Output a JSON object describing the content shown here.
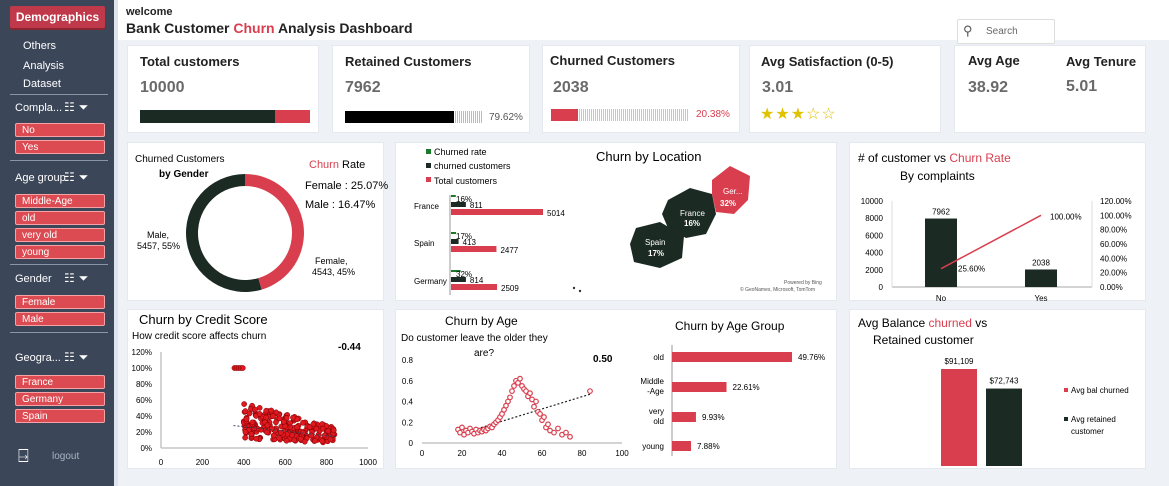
{
  "sidebar": {
    "active": "Demographics",
    "items": [
      "Others",
      "Analysis",
      "Dataset"
    ],
    "slicers": [
      {
        "title": "Compla...",
        "options": [
          "No",
          "Yes"
        ]
      },
      {
        "title": "Age group",
        "options": [
          "Middle-Age",
          "old",
          "very old",
          "young"
        ]
      },
      {
        "title": "Gender",
        "options": [
          "Female",
          "Male"
        ]
      },
      {
        "title": "Geogra...",
        "options": [
          "France",
          "Germany",
          "Spain"
        ]
      }
    ],
    "logout": "logout"
  },
  "header": {
    "welcome": "welcome",
    "title_pre": "Bank Customer ",
    "title_red": "Churn",
    "title_post": " Analysis Dashboard",
    "search_placeholder": "Search"
  },
  "kpis": {
    "total": {
      "title": "Total customers",
      "value": "10000",
      "bar_dark_fraction": 0.7962
    },
    "retained": {
      "title": "Retained Customers",
      "value": "7962",
      "pct": "79.62%",
      "fraction": 0.7962
    },
    "churned": {
      "title": "Churned Customers",
      "value": "2038",
      "pct": "20.38%",
      "fraction": 0.2038
    },
    "satisfaction": {
      "title": "Avg Satisfaction (0-5)",
      "value": "3.01",
      "stars_filled": 3,
      "stars_total": 5
    },
    "age": {
      "title": "Avg Age",
      "value": "38.92"
    },
    "tenure": {
      "title": "Avg Tenure",
      "value": "5.01"
    }
  },
  "colors": {
    "red": "#d93e4e",
    "dark": "#1c2a24",
    "sidebar": "#3b4658"
  },
  "chart_data": [
    {
      "id": "gender_donut",
      "type": "pie",
      "title_line1": "Churned Customers",
      "title_line2": "by Gender",
      "rate_red": "Churn",
      "rate_rest": " Rate",
      "rate_lines": [
        "Female : 25.07%",
        "Male : 16.47%"
      ],
      "slices": [
        {
          "label": "Male",
          "value": 5457,
          "pct": "55%"
        },
        {
          "label": "Female",
          "value": 4543,
          "pct": "45%"
        }
      ]
    },
    {
      "id": "location_bars",
      "type": "bar",
      "title": "Churn by Location",
      "legend": [
        "Churned rate",
        "churned customers",
        "Total customers"
      ],
      "categories": [
        "France",
        "Spain",
        "Germany"
      ],
      "series": [
        {
          "name": "Churned rate",
          "values": [
            16,
            17,
            32
          ],
          "labels": [
            "16%",
            "17%",
            "32%"
          ]
        },
        {
          "name": "churned customers",
          "values": [
            811,
            413,
            814
          ]
        },
        {
          "name": "Total customers",
          "values": [
            5014,
            2477,
            2509
          ]
        }
      ],
      "map_labels": [
        {
          "name": "France",
          "pct": "16%"
        },
        {
          "name": "Spain",
          "pct": "17%"
        },
        {
          "name": "Ger...",
          "pct": "32%"
        }
      ],
      "map_credit1": "Powered by Bing",
      "map_credit2": "© GeoNames, Microsoft, TomTom"
    },
    {
      "id": "complaints",
      "type": "bar",
      "title_pre": "# of customer vs ",
      "title_red": "Churn Rate",
      "subtitle": "By complaints",
      "categories": [
        "No",
        "Yes"
      ],
      "series": [
        {
          "name": "customers",
          "values": [
            7962,
            2038
          ]
        },
        {
          "name": "churn rate",
          "values": [
            25.6,
            100.0
          ],
          "labels": [
            "25.60%",
            "100.00%"
          ]
        }
      ],
      "y_left_ticks": [
        "10000",
        "8000",
        "6000",
        "4000",
        "2000",
        "0"
      ],
      "y_right_ticks": [
        "120.00%",
        "100.00%",
        "80.00%",
        "60.00%",
        "40.00%",
        "20.00%",
        "0.00%"
      ],
      "ylim_left": [
        0,
        10000
      ],
      "ylim_right": [
        0,
        120
      ]
    },
    {
      "id": "credit_score",
      "type": "scatter",
      "title": "Churn by Credit Score",
      "subtitle": "How credit score affects churn",
      "correlation": "-0.44",
      "x_ticks": [
        "0",
        "200",
        "400",
        "600",
        "800",
        "1000"
      ],
      "y_ticks": [
        "120%",
        "100%",
        "80%",
        "60%",
        "40%",
        "20%",
        "0%"
      ],
      "xlim": [
        0,
        1000
      ],
      "ylim": [
        0,
        120
      ]
    },
    {
      "id": "churn_by_age",
      "type": "scatter",
      "title": "Churn by Age",
      "subtitle_line1": "Do customer leave the older they",
      "subtitle_line2": "are?",
      "correlation": "0.50",
      "x_ticks": [
        "0",
        "20",
        "40",
        "60",
        "80",
        "100"
      ],
      "y_ticks": [
        "0.8",
        "0.6",
        "0.4",
        "0.2",
        "0"
      ],
      "xlim": [
        0,
        100
      ],
      "ylim": [
        0,
        0.8
      ],
      "points": [
        [
          18,
          0.13
        ],
        [
          19,
          0.1
        ],
        [
          20,
          0.15
        ],
        [
          21,
          0.08
        ],
        [
          22,
          0.12
        ],
        [
          23,
          0.1
        ],
        [
          24,
          0.14
        ],
        [
          25,
          0.11
        ],
        [
          26,
          0.09
        ],
        [
          27,
          0.13
        ],
        [
          28,
          0.1
        ],
        [
          29,
          0.12
        ],
        [
          30,
          0.11
        ],
        [
          31,
          0.13
        ],
        [
          32,
          0.12
        ],
        [
          33,
          0.14
        ],
        [
          34,
          0.16
        ],
        [
          35,
          0.15
        ],
        [
          36,
          0.18
        ],
        [
          37,
          0.2
        ],
        [
          38,
          0.22
        ],
        [
          39,
          0.25
        ],
        [
          40,
          0.28
        ],
        [
          41,
          0.32
        ],
        [
          42,
          0.36
        ],
        [
          43,
          0.4
        ],
        [
          44,
          0.44
        ],
        [
          45,
          0.5
        ],
        [
          46,
          0.55
        ],
        [
          47,
          0.6
        ],
        [
          48,
          0.58
        ],
        [
          49,
          0.62
        ],
        [
          50,
          0.55
        ],
        [
          51,
          0.52
        ],
        [
          52,
          0.5
        ],
        [
          53,
          0.45
        ],
        [
          54,
          0.48
        ],
        [
          55,
          0.42
        ],
        [
          56,
          0.35
        ],
        [
          57,
          0.4
        ],
        [
          58,
          0.3
        ],
        [
          59,
          0.28
        ],
        [
          60,
          0.22
        ],
        [
          61,
          0.25
        ],
        [
          62,
          0.15
        ],
        [
          63,
          0.18
        ],
        [
          64,
          0.12
        ],
        [
          66,
          0.1
        ],
        [
          68,
          0.14
        ],
        [
          70,
          0.08
        ],
        [
          72,
          0.1
        ],
        [
          74,
          0.06
        ],
        [
          84,
          0.5
        ]
      ]
    },
    {
      "id": "age_group",
      "type": "bar",
      "title": "Churn by Age Group",
      "categories": [
        "old",
        "Middle -Age",
        "very old",
        "young"
      ],
      "values": [
        49.76,
        22.61,
        9.93,
        7.88
      ],
      "labels": [
        "49.76%",
        "22.61%",
        "9.93%",
        "7.88%"
      ]
    },
    {
      "id": "balance",
      "type": "bar",
      "title_pre": "Avg Balance ",
      "title_red": "churned",
      "title_post": " vs",
      "title_line2": "Retained customer",
      "categories": [
        "Avg bal churned",
        "Avg retained customer"
      ],
      "values": [
        91109,
        72743
      ],
      "labels": [
        "$91,109",
        "$72,743"
      ],
      "legend": [
        "Avg bal churned",
        "Avg retained",
        "customer"
      ]
    }
  ]
}
